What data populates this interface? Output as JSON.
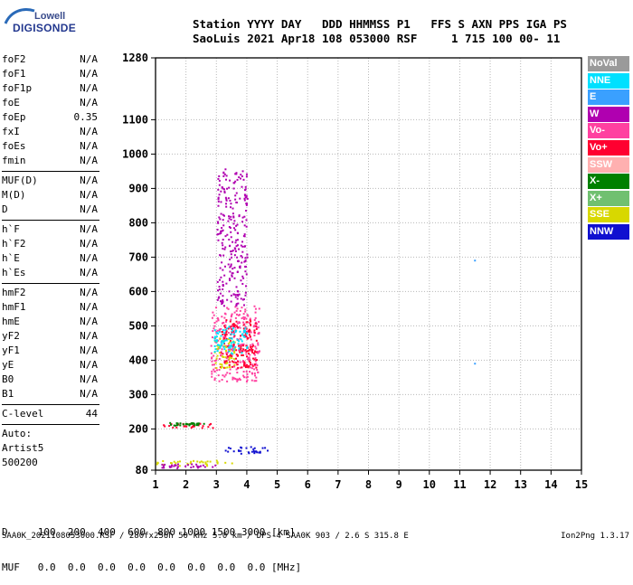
{
  "logo": {
    "line1": "Lowell",
    "line2": "DIGISONDE"
  },
  "header": {
    "line1": "Station YYYY DAY   DDD HHMMSS P1   FFS S AXN PPS IGA PS",
    "line2": "SaoLuis 2021 Apr18 108 053000 RSF     1 715 100 00- 11"
  },
  "params": {
    "group1": [
      {
        "label": "foF2",
        "value": "N/A"
      },
      {
        "label": "foF1",
        "value": "N/A"
      },
      {
        "label": "foF1p",
        "value": "N/A"
      },
      {
        "label": "foE",
        "value": "N/A"
      },
      {
        "label": "foEp",
        "value": "0.35"
      },
      {
        "label": "fxI",
        "value": "N/A"
      },
      {
        "label": "foEs",
        "value": "N/A"
      },
      {
        "label": "fmin",
        "value": "N/A"
      }
    ],
    "group2": [
      {
        "label": "MUF(D)",
        "value": "N/A"
      },
      {
        "label": "M(D)",
        "value": "N/A"
      },
      {
        "label": "D",
        "value": "N/A"
      }
    ],
    "group3": [
      {
        "label": "h`F",
        "value": "N/A"
      },
      {
        "label": "h`F2",
        "value": "N/A"
      },
      {
        "label": "h`E",
        "value": "N/A"
      },
      {
        "label": "h`Es",
        "value": "N/A"
      }
    ],
    "group4": [
      {
        "label": "hmF2",
        "value": "N/A"
      },
      {
        "label": "hmF1",
        "value": "N/A"
      },
      {
        "label": "hmE",
        "value": "N/A"
      },
      {
        "label": "yF2",
        "value": "N/A"
      },
      {
        "label": "yF1",
        "value": "N/A"
      },
      {
        "label": "yE",
        "value": "N/A"
      },
      {
        "label": "B0",
        "value": "N/A"
      },
      {
        "label": "B1",
        "value": "N/A"
      }
    ],
    "clevel": {
      "label": "C-level",
      "value": "44"
    },
    "auto": [
      "Auto:",
      "Artist5",
      "500200"
    ]
  },
  "legend": [
    {
      "label": "NoVal",
      "color": "#9a9a9a"
    },
    {
      "label": "NNE",
      "color": "#00e0ff"
    },
    {
      "label": "E",
      "color": "#3aa0ff"
    },
    {
      "label": "W",
      "color": "#b000b0"
    },
    {
      "label": "Vo-",
      "color": "#ff40a0"
    },
    {
      "label": "Vo+",
      "color": "#ff0030"
    },
    {
      "label": "SSW",
      "color": "#ffb0b0"
    },
    {
      "label": "X-",
      "color": "#008000"
    },
    {
      "label": "X+",
      "color": "#70c070"
    },
    {
      "label": "SSE",
      "color": "#d8d800"
    },
    {
      "label": "NNW",
      "color": "#1010d0"
    }
  ],
  "chart_data": {
    "type": "scatter",
    "x_ticks": [
      1,
      2,
      3,
      4,
      5,
      6,
      7,
      8,
      9,
      10,
      11,
      12,
      13,
      14,
      15
    ],
    "y_ticks": [
      80,
      200,
      300,
      400,
      500,
      600,
      700,
      800,
      900,
      1000,
      1100,
      1280
    ],
    "xlim": [
      1,
      15
    ],
    "ylim": [
      80,
      1280
    ],
    "grid": true,
    "clusters": [
      {
        "color": "#1010d0",
        "x": [
          3.1,
          4.7
        ],
        "y": [
          130,
          150
        ]
      },
      {
        "color": "#d8d800",
        "x": [
          1.0,
          3.5
        ],
        "y": [
          95,
          110
        ]
      },
      {
        "color": "#b000b0",
        "x": [
          1.0,
          3.0
        ],
        "y": [
          88,
          100
        ]
      },
      {
        "color": "#ff0030",
        "x": [
          1.2,
          2.9
        ],
        "y": [
          205,
          218
        ]
      },
      {
        "color": "#008000",
        "x": [
          1.4,
          2.6
        ],
        "y": [
          212,
          220
        ]
      },
      {
        "color": "#ff40a0",
        "x": [
          2.8,
          4.4
        ],
        "y": [
          340,
          560
        ]
      },
      {
        "color": "#b000b0",
        "x": [
          3.0,
          4.0
        ],
        "y": [
          560,
          960
        ]
      },
      {
        "color": "#ff0030",
        "x": [
          3.1,
          4.3
        ],
        "y": [
          380,
          520
        ]
      },
      {
        "color": "#d8d800",
        "x": [
          2.9,
          3.6
        ],
        "y": [
          380,
          470
        ]
      },
      {
        "color": "#00e0ff",
        "x": [
          2.9,
          4.0
        ],
        "y": [
          420,
          500
        ]
      }
    ],
    "isolated_points": [
      {
        "x": 11.5,
        "y": 690,
        "color": "#3aa0ff"
      },
      {
        "x": 11.5,
        "y": 390,
        "color": "#3aa0ff"
      }
    ]
  },
  "bottom": {
    "line1": "D     100  200  400  600  800 1000 1500 3000 [km]",
    "line2": "MUF   0.0  0.0  0.0  0.0  0.0  0.0  0.0  0.0 [MHz]"
  },
  "footer": {
    "left": "SAA0K_2021108053000.RSF / 280fx256h 50 kHz 5.0 km / DPS-4 SAA0K 903 / 2.6 S 315.8 E",
    "right": "Ion2Png 1.3.17"
  }
}
